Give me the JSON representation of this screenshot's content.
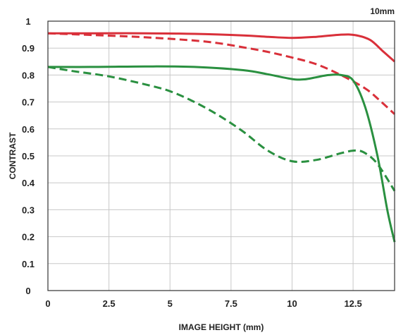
{
  "chart_data": {
    "type": "line",
    "corner_label": "10mm",
    "xlabel": "IMAGE HEIGHT (mm)",
    "ylabel": "CONTRAST",
    "xlim": [
      0,
      14.2
    ],
    "ylim": [
      0,
      1
    ],
    "x_ticks": [
      0,
      2.5,
      5,
      7.5,
      10,
      12.5
    ],
    "x_tick_labels": [
      "0",
      "2.5",
      "5",
      "7.5",
      "10",
      "12.5"
    ],
    "y_ticks": [
      0,
      0.1,
      0.2,
      0.3,
      0.4,
      0.5,
      0.6,
      0.7,
      0.8,
      0.9,
      1
    ],
    "y_tick_labels": [
      "0",
      "0.1",
      "0.2",
      "0.3",
      "0.4",
      "0.5",
      "0.6",
      "0.7",
      "0.8",
      "0.9",
      "1"
    ],
    "grid": true,
    "colors": {
      "red": "#d9303a",
      "green": "#2a9040",
      "grid": "#c8c8c8",
      "frame": "#333333"
    },
    "series": [
      {
        "color": "red",
        "style": "solid",
        "x": [
          0,
          2,
          4,
          6,
          8,
          9,
          10,
          11,
          12,
          12.6,
          13.2,
          13.7,
          14.2
        ],
        "y": [
          0.955,
          0.955,
          0.955,
          0.953,
          0.947,
          0.942,
          0.938,
          0.942,
          0.95,
          0.948,
          0.93,
          0.89,
          0.85
        ]
      },
      {
        "color": "red",
        "style": "dashed",
        "x": [
          0,
          2,
          4,
          6,
          7,
          8,
          9,
          10,
          11,
          12,
          13,
          13.6,
          14.2
        ],
        "y": [
          0.955,
          0.948,
          0.94,
          0.928,
          0.918,
          0.903,
          0.886,
          0.865,
          0.84,
          0.8,
          0.75,
          0.705,
          0.655
        ]
      },
      {
        "color": "green",
        "style": "solid",
        "x": [
          0,
          2,
          4,
          6,
          8,
          9,
          10,
          10.5,
          11,
          11.5,
          12,
          12.5,
          13,
          13.5,
          13.9,
          14.2
        ],
        "y": [
          0.83,
          0.83,
          0.832,
          0.83,
          0.818,
          0.803,
          0.785,
          0.784,
          0.792,
          0.8,
          0.8,
          0.78,
          0.68,
          0.5,
          0.3,
          0.18
        ]
      },
      {
        "color": "green",
        "style": "dashed",
        "x": [
          0,
          1,
          2.5,
          4,
          5,
          6,
          7,
          8,
          9,
          10,
          11,
          12,
          12.6,
          13,
          13.5,
          14.2
        ],
        "y": [
          0.83,
          0.815,
          0.795,
          0.765,
          0.74,
          0.7,
          0.65,
          0.59,
          0.52,
          0.48,
          0.485,
          0.51,
          0.52,
          0.51,
          0.47,
          0.37
        ]
      }
    ]
  }
}
